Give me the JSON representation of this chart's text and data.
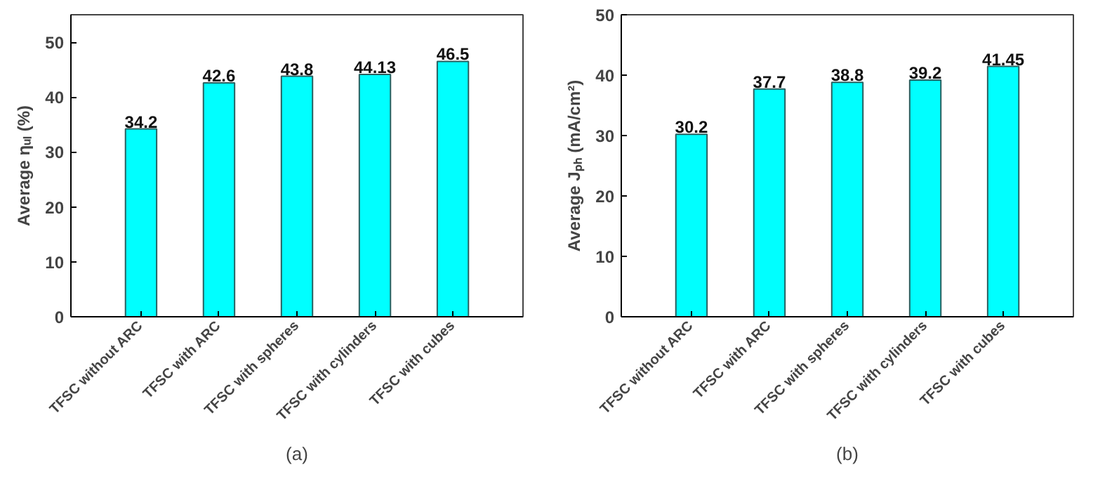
{
  "chart_data": [
    {
      "type": "bar",
      "ylabel": "Average ηᵤₗ (%)",
      "categories": [
        "TFSC without ARC",
        "TFSC with ARC",
        "TFSC with spheres",
        "TFSC with cylinders",
        "TFSC with cubes"
      ],
      "values": [
        34.2,
        42.6,
        43.8,
        44.13,
        46.5
      ],
      "color": "#00ffff",
      "ylim": [
        0,
        55
      ],
      "yticks": [
        0,
        10,
        20,
        30,
        40,
        50
      ],
      "data_labels": true,
      "annotations": [
        "(a)"
      ]
    },
    {
      "type": "bar",
      "ylabel": "Average Jₚₕ (mA/cm²)",
      "categories": [
        "TFSC without ARC",
        "TFSC with ARC",
        "TFSC with spheres",
        "TFSC with cylinders",
        "TFSC with cubes"
      ],
      "values": [
        30.2,
        37.7,
        38.8,
        39.2,
        41.45
      ],
      "color": "#00ffff",
      "ylim": [
        0,
        50
      ],
      "yticks": [
        0,
        10,
        20,
        30,
        40,
        50
      ],
      "data_labels": true,
      "annotations": [
        "(b)"
      ]
    }
  ]
}
